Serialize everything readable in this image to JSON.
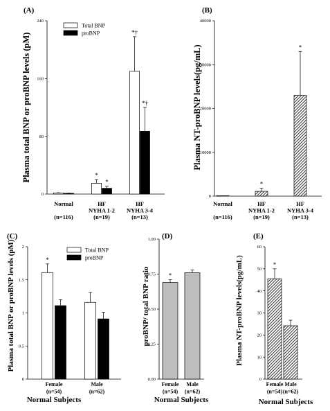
{
  "colors": {
    "total": "#ffffff",
    "pro": "#000000",
    "ratio": "#bdbdbd",
    "hatch": "#000000"
  },
  "chart_data": [
    {
      "panel": "(A)",
      "type": "bar",
      "ylabel": "Plasma total BNP or proBNP levels (pM)",
      "ylim": [
        0,
        240
      ],
      "yticks": [
        "0",
        "80",
        "160",
        "240"
      ],
      "ytick_values": [
        0,
        80,
        160,
        240
      ],
      "categories": [
        [
          "Normal",
          "(n=116)"
        ],
        [
          "HF",
          "NYHA 1-2",
          "(n=19)"
        ],
        [
          "HF",
          "NYHA 3-4",
          "(n=13)"
        ]
      ],
      "legend": "top-center",
      "series": [
        {
          "name": "Total BNP",
          "fill": "white",
          "values": [
            1.6,
            15,
            170
          ],
          "errors": [
            0.3,
            5,
            48
          ],
          "annotations": [
            "",
            "*",
            "*†"
          ]
        },
        {
          "name": "proBNP",
          "fill": "black",
          "values": [
            1.1,
            8,
            87
          ],
          "errors": [
            0.2,
            3,
            33
          ],
          "annotations": [
            "",
            "*",
            "*†"
          ]
        }
      ]
    },
    {
      "panel": "(B)",
      "type": "bar",
      "ylabel": "Plasma NT-proBNP levels(pg/mL)",
      "ylim": [
        0,
        40000
      ],
      "yticks": [
        "0",
        "10000",
        "20000",
        "30000",
        "40000"
      ],
      "ytick_values": [
        0,
        10000,
        20000,
        30000,
        40000
      ],
      "categories": [
        [
          "Normal",
          "(n=116)"
        ],
        [
          "HF",
          "NYHA 1-2",
          "(n=19)"
        ],
        [
          "HF",
          "NYHA 3-4",
          "(n=13)"
        ]
      ],
      "series": [
        {
          "fill": "hatch",
          "values": [
            40,
            1100,
            23000
          ],
          "errors": [
            10,
            700,
            10000
          ],
          "annotations": [
            "",
            "*",
            "*"
          ]
        }
      ]
    },
    {
      "panel": "(C)",
      "type": "bar",
      "ylabel": "Plasma total BNP or proBNP levels (pM)",
      "ylim": [
        0,
        2
      ],
      "yticks": [
        "0",
        "0.5",
        "1",
        "1.5",
        "2"
      ],
      "ytick_values": [
        0,
        0.5,
        1,
        1.5,
        2
      ],
      "categories": [
        [
          "Female",
          "(n=54)"
        ],
        [
          "Male",
          "(n=62)"
        ]
      ],
      "xtitle": "Normal Subjects",
      "legend": "top-right",
      "series": [
        {
          "name": "Total BNP",
          "fill": "white",
          "values": [
            1.61,
            1.16
          ],
          "errors": [
            0.13,
            0.15
          ],
          "annotations": [
            "*",
            ""
          ]
        },
        {
          "name": "proBNP",
          "fill": "black",
          "values": [
            1.11,
            0.91
          ],
          "errors": [
            0.09,
            0.1
          ],
          "annotations": [
            "",
            ""
          ]
        }
      ]
    },
    {
      "panel": "(D)",
      "type": "bar",
      "ylabel": "proBNP/ total BNP ratio",
      "ylim": [
        0,
        1
      ],
      "yticks": [
        "0.00",
        "0.25",
        "0.50",
        "0.75",
        "1.00"
      ],
      "ytick_values": [
        0,
        0.25,
        0.5,
        0.75,
        1
      ],
      "categories": [
        [
          "Female",
          "(n=54)"
        ],
        [
          "Male",
          "(n=62)"
        ]
      ],
      "xtitle": "Normal Subjects",
      "series": [
        {
          "fill": "gray",
          "values": [
            0.69,
            0.76
          ],
          "errors": [
            0.02,
            0.02
          ],
          "annotations": [
            "*",
            ""
          ]
        }
      ]
    },
    {
      "panel": "(E)",
      "type": "bar",
      "ylabel": "Plasma NT-proBNP levels(pg/mL)",
      "ylim": [
        0,
        60
      ],
      "yticks": [
        "0",
        "10",
        "20",
        "30",
        "40",
        "50",
        "60"
      ],
      "ytick_values": [
        0,
        10,
        20,
        30,
        40,
        50,
        60
      ],
      "categories": [
        [
          "Female",
          "(n=54)"
        ],
        [
          "Male",
          "(n=62)"
        ]
      ],
      "xtitle": "Normal Subjects",
      "series": [
        {
          "fill": "hatch",
          "values": [
            45.5,
            24.2
          ],
          "errors": [
            4.5,
            2.5
          ],
          "annotations": [
            "*",
            ""
          ]
        }
      ]
    }
  ]
}
